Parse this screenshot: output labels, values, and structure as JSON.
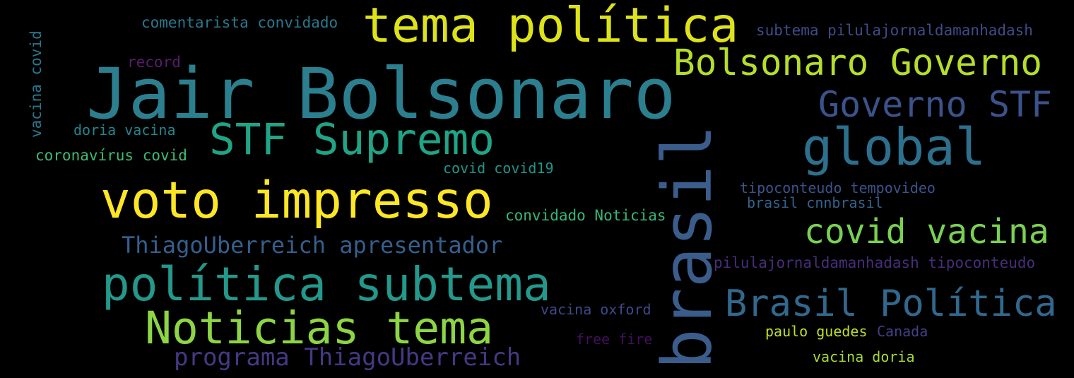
{
  "words": [
    {
      "text": "Jair Bolsonaro",
      "color": "#2c7f8e"
    },
    {
      "text": "tema política",
      "color": "#dde318"
    },
    {
      "text": "brasil",
      "color": "#3b5d8c"
    },
    {
      "text": "voto impresso",
      "color": "#fde725"
    },
    {
      "text": "política subtema",
      "color": "#23988b"
    },
    {
      "text": "Noticias tema",
      "color": "#8dd544"
    },
    {
      "text": "Bolsonaro Governo",
      "color": "#b5de2b"
    },
    {
      "text": "STF Supremo",
      "color": "#20a486"
    },
    {
      "text": "global",
      "color": "#2d708e"
    },
    {
      "text": "Governo STF",
      "color": "#3b528b"
    },
    {
      "text": "covid vacina",
      "color": "#7ad151"
    },
    {
      "text": "Brasil Política",
      "color": "#31688e"
    },
    {
      "text": "ThiagoUberreich apresentador",
      "color": "#355f8d"
    },
    {
      "text": "programa ThiagoUberreich",
      "color": "#443983"
    },
    {
      "text": "comentarista convidado",
      "color": "#2a788e"
    },
    {
      "text": "subtema pilulajornaldamanhadash",
      "color": "#3e4c8a"
    },
    {
      "text": "record",
      "color": "#5a1d6e"
    },
    {
      "text": "vacina covid",
      "color": "#2a788e"
    },
    {
      "text": "doria vacina",
      "color": "#25858e"
    },
    {
      "text": "coronavírus covid",
      "color": "#3fbc73"
    },
    {
      "text": "covid covid19",
      "color": "#1f968b"
    },
    {
      "text": "tipoconteudo tempovideo",
      "color": "#3b528b"
    },
    {
      "text": "brasil cnnbrasil",
      "color": "#33638d"
    },
    {
      "text": "convidado Noticias",
      "color": "#35b779"
    },
    {
      "text": "pilulajornaldamanhadash tipoconteudo",
      "color": "#472d7b"
    },
    {
      "text": "vacina oxford",
      "color": "#3e4a89"
    },
    {
      "text": "paulo guedes",
      "color": "#c2df23"
    },
    {
      "text": "Canada",
      "color": "#424086"
    },
    {
      "text": "free fire",
      "color": "#440f5b"
    },
    {
      "text": "vacina doria",
      "color": "#a5db36"
    }
  ]
}
